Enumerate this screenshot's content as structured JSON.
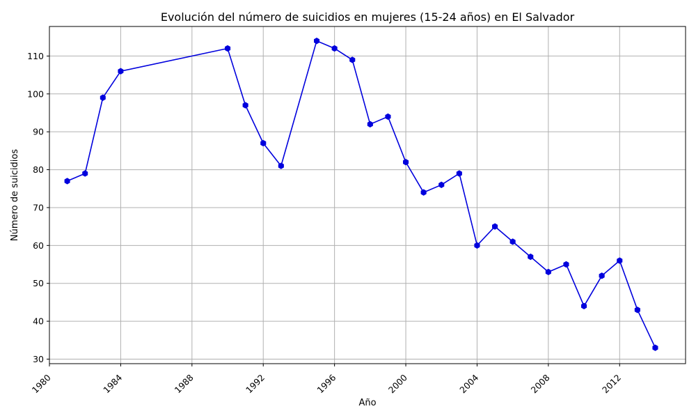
{
  "chart_data": {
    "type": "line",
    "title": "Evolución del número de suicidios en mujeres (15-24 años) en El Salvador",
    "xlabel": "Año",
    "ylabel": "Número de suicidios",
    "xlim": [
      1980,
      2015.7
    ],
    "ylim": [
      28.8,
      117.8
    ],
    "xticks": [
      1980,
      1984,
      1988,
      1992,
      1996,
      2000,
      2004,
      2008,
      2012
    ],
    "yticks": [
      30,
      40,
      50,
      60,
      70,
      80,
      90,
      100,
      110
    ],
    "grid": true,
    "series_color": "#0000dd",
    "series": [
      {
        "x": [
          1981,
          1982,
          1983,
          1984,
          1990,
          1991,
          1992,
          1993,
          1995,
          1996,
          1997,
          1998,
          1999,
          2000,
          2001,
          2002,
          2003,
          2004,
          2005,
          2006,
          2007,
          2008,
          2009,
          2010,
          2011,
          2012,
          2013,
          2014
        ],
        "values": [
          77,
          79,
          99,
          106,
          112,
          97,
          87,
          81,
          114,
          112,
          109,
          92,
          94,
          82,
          74,
          76,
          79,
          60,
          65,
          61,
          57,
          53,
          55,
          44,
          52,
          56,
          43,
          33
        ]
      }
    ]
  }
}
